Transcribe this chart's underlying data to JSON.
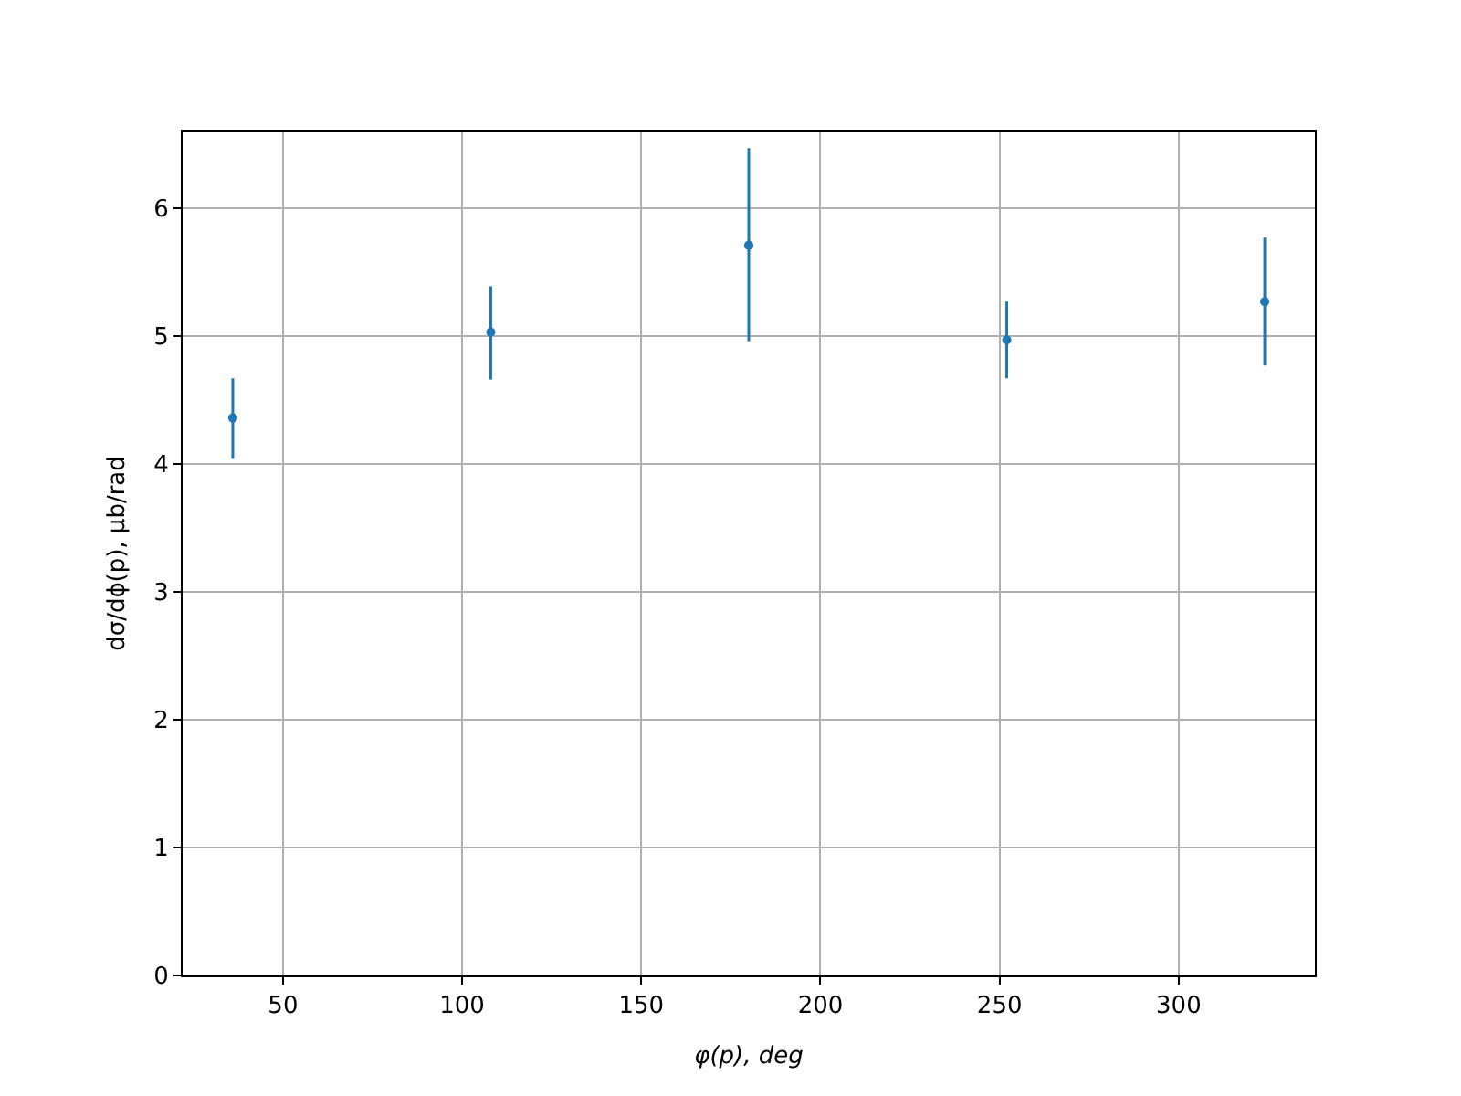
{
  "chart_data": {
    "type": "scatter",
    "xlabel": "φ(p), deg",
    "ylabel": "dσ/dϕ(p), μb/rad",
    "x": [
      36,
      108,
      180,
      252,
      324
    ],
    "series": [
      {
        "color": "#1f77b4",
        "values": [
          4.36,
          5.03,
          5.71,
          4.97,
          5.27
        ],
        "errors": [
          [
            4.04,
            4.67
          ],
          [
            4.66,
            5.39
          ],
          [
            4.96,
            6.47
          ],
          [
            4.67,
            5.27
          ],
          [
            4.77,
            5.77
          ]
        ]
      }
    ],
    "xlim": [
      22,
      338
    ],
    "xticks": [
      50,
      100,
      150,
      200,
      250,
      300
    ],
    "ylim": [
      0,
      6.6
    ],
    "yticks": [
      0,
      1,
      2,
      3,
      4,
      5,
      6
    ],
    "grid": true,
    "marker": "circle"
  }
}
